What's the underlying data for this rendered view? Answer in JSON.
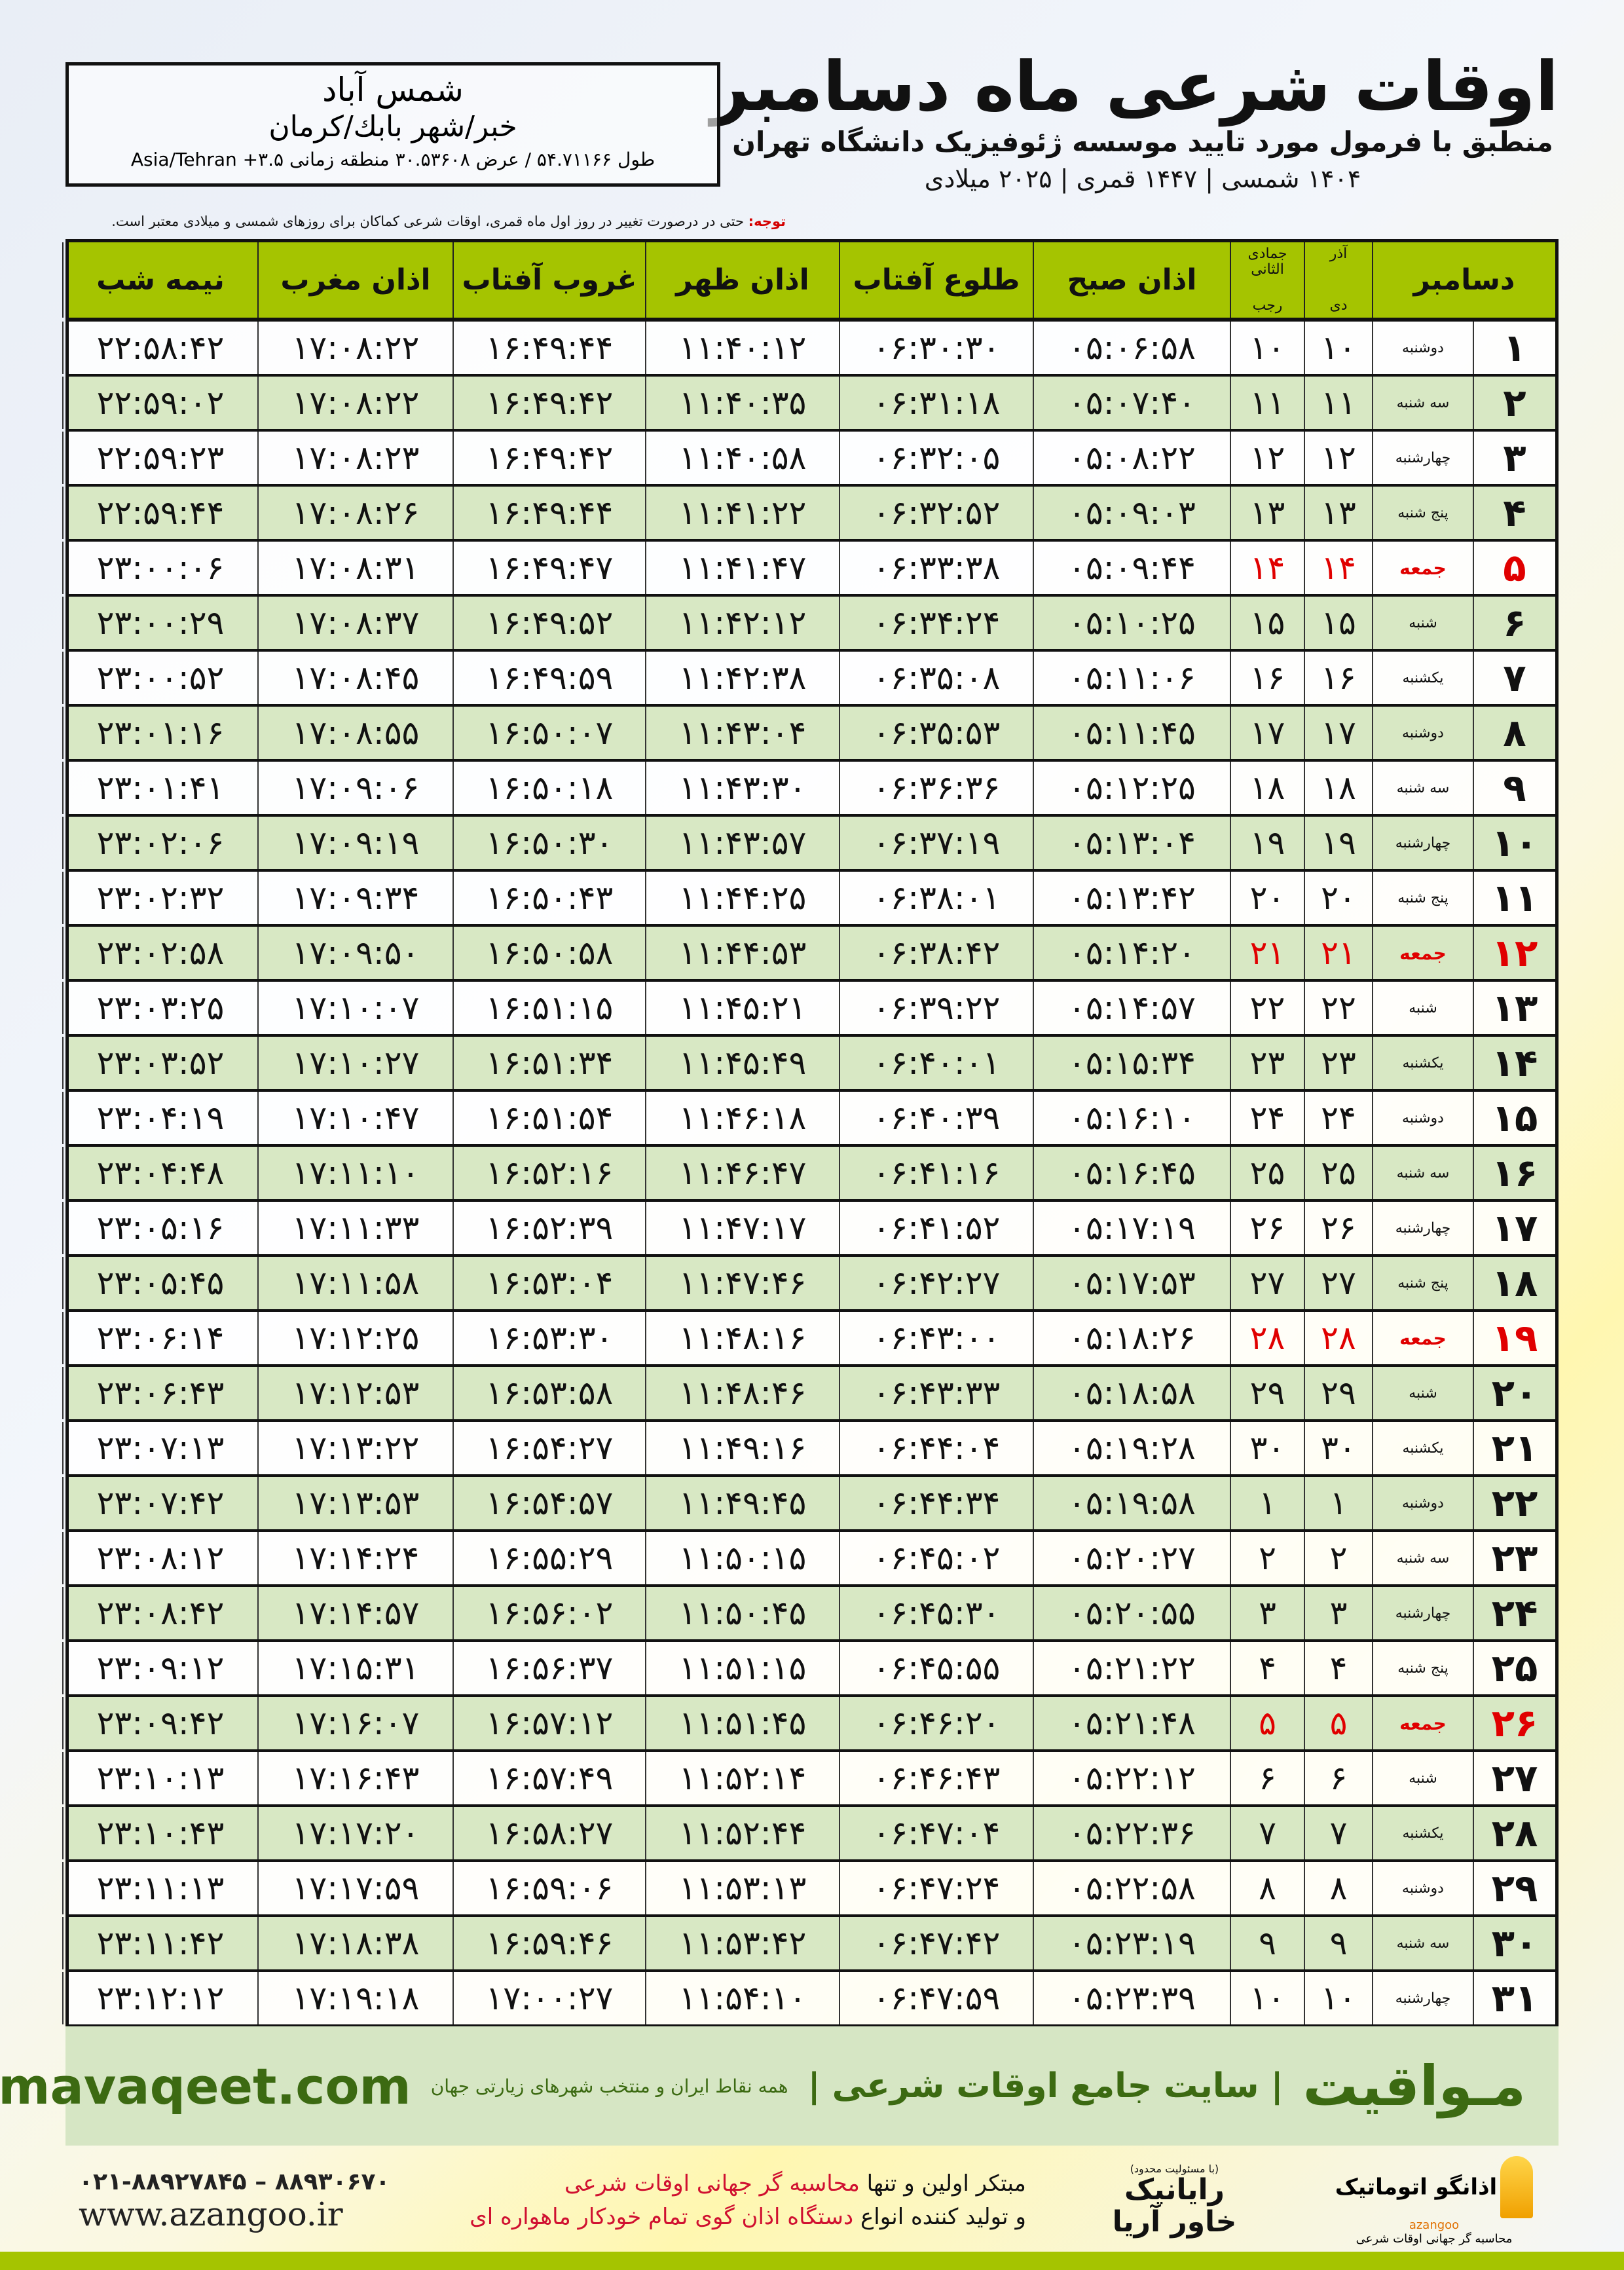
{
  "header": {
    "title": "اوقات شرعی ماه دسامبر",
    "subtitle": "منطبق با فرمول مورد تایید موسسه ژئوفیزیک دانشگاه تهران",
    "dates": "۱۴۰۴ شمسی | ۱۴۴۷ قمری | ۲۰۲۵ میلادی"
  },
  "location": {
    "city": "شمس آباد",
    "region": "خبر/شهر بابك/كرمان",
    "coords": "طول ۵۴.۷۱۱۶۶ / عرض ۳۰.۵۳۶۰۸ منطقه زمانی ۳.۵+ Asia/Tehran"
  },
  "note": {
    "label": "توجه:",
    "text": " حتی در درصورت تغییر در روز اول ماه قمری، اوقات شرعی کماکان برای روزهای شمسی و میلادی معتبر است."
  },
  "columns": {
    "month": "دسامبر",
    "shamsi_top": "آذر",
    "shamsi_bottom": "دی",
    "hijri_top": "جمادی الثانی",
    "hijri_bottom": "رجب",
    "fajr": "اذان صبح",
    "sunrise": "طلوع آفتاب",
    "dhuhr": "اذان ظهر",
    "sunset": "غروب آفتاب",
    "maghrib": "اذان مغرب",
    "midnight": "نیمه شب"
  },
  "colors": {
    "header_green": "#a5c400",
    "alt_row": "#d8e8c4",
    "friday": "#e00000",
    "brand_green": "#3c6a12"
  },
  "rows": [
    [
      "۱",
      "دوشنبه",
      "۱۰",
      "۱۰",
      "۰۵:۰۶:۵۸",
      "۰۶:۳۰:۳۰",
      "۱۱:۴۰:۱۲",
      "۱۶:۴۹:۴۴",
      "۱۷:۰۸:۲۲",
      "۲۲:۵۸:۴۲"
    ],
    [
      "۲",
      "سه شنبه",
      "۱۱",
      "۱۱",
      "۰۵:۰۷:۴۰",
      "۰۶:۳۱:۱۸",
      "۱۱:۴۰:۳۵",
      "۱۶:۴۹:۴۲",
      "۱۷:۰۸:۲۲",
      "۲۲:۵۹:۰۲"
    ],
    [
      "۳",
      "چهارشنبه",
      "۱۲",
      "۱۲",
      "۰۵:۰۸:۲۲",
      "۰۶:۳۲:۰۵",
      "۱۱:۴۰:۵۸",
      "۱۶:۴۹:۴۲",
      "۱۷:۰۸:۲۳",
      "۲۲:۵۹:۲۳"
    ],
    [
      "۴",
      "پنج شنبه",
      "۱۳",
      "۱۳",
      "۰۵:۰۹:۰۳",
      "۰۶:۳۲:۵۲",
      "۱۱:۴۱:۲۲",
      "۱۶:۴۹:۴۴",
      "۱۷:۰۸:۲۶",
      "۲۲:۵۹:۴۴"
    ],
    [
      "۵",
      "جمعه",
      "۱۴",
      "۱۴",
      "۰۵:۰۹:۴۴",
      "۰۶:۳۳:۳۸",
      "۱۱:۴۱:۴۷",
      "۱۶:۴۹:۴۷",
      "۱۷:۰۸:۳۱",
      "۲۳:۰۰:۰۶"
    ],
    [
      "۶",
      "شنبه",
      "۱۵",
      "۱۵",
      "۰۵:۱۰:۲۵",
      "۰۶:۳۴:۲۴",
      "۱۱:۴۲:۱۲",
      "۱۶:۴۹:۵۲",
      "۱۷:۰۸:۳۷",
      "۲۳:۰۰:۲۹"
    ],
    [
      "۷",
      "یکشنبه",
      "۱۶",
      "۱۶",
      "۰۵:۱۱:۰۶",
      "۰۶:۳۵:۰۸",
      "۱۱:۴۲:۳۸",
      "۱۶:۴۹:۵۹",
      "۱۷:۰۸:۴۵",
      "۲۳:۰۰:۵۲"
    ],
    [
      "۸",
      "دوشنبه",
      "۱۷",
      "۱۷",
      "۰۵:۱۱:۴۵",
      "۰۶:۳۵:۵۳",
      "۱۱:۴۳:۰۴",
      "۱۶:۵۰:۰۷",
      "۱۷:۰۸:۵۵",
      "۲۳:۰۱:۱۶"
    ],
    [
      "۹",
      "سه شنبه",
      "۱۸",
      "۱۸",
      "۰۵:۱۲:۲۵",
      "۰۶:۳۶:۳۶",
      "۱۱:۴۳:۳۰",
      "۱۶:۵۰:۱۸",
      "۱۷:۰۹:۰۶",
      "۲۳:۰۱:۴۱"
    ],
    [
      "۱۰",
      "چهارشنبه",
      "۱۹",
      "۱۹",
      "۰۵:۱۳:۰۴",
      "۰۶:۳۷:۱۹",
      "۱۱:۴۳:۵۷",
      "۱۶:۵۰:۳۰",
      "۱۷:۰۹:۱۹",
      "۲۳:۰۲:۰۶"
    ],
    [
      "۱۱",
      "پنج شنبه",
      "۲۰",
      "۲۰",
      "۰۵:۱۳:۴۲",
      "۰۶:۳۸:۰۱",
      "۱۱:۴۴:۲۵",
      "۱۶:۵۰:۴۳",
      "۱۷:۰۹:۳۴",
      "۲۳:۰۲:۳۲"
    ],
    [
      "۱۲",
      "جمعه",
      "۲۱",
      "۲۱",
      "۰۵:۱۴:۲۰",
      "۰۶:۳۸:۴۲",
      "۱۱:۴۴:۵۳",
      "۱۶:۵۰:۵۸",
      "۱۷:۰۹:۵۰",
      "۲۳:۰۲:۵۸"
    ],
    [
      "۱۳",
      "شنبه",
      "۲۲",
      "۲۲",
      "۰۵:۱۴:۵۷",
      "۰۶:۳۹:۲۲",
      "۱۱:۴۵:۲۱",
      "۱۶:۵۱:۱۵",
      "۱۷:۱۰:۰۷",
      "۲۳:۰۳:۲۵"
    ],
    [
      "۱۴",
      "یکشنبه",
      "۲۳",
      "۲۳",
      "۰۵:۱۵:۳۴",
      "۰۶:۴۰:۰۱",
      "۱۱:۴۵:۴۹",
      "۱۶:۵۱:۳۴",
      "۱۷:۱۰:۲۷",
      "۲۳:۰۳:۵۲"
    ],
    [
      "۱۵",
      "دوشنبه",
      "۲۴",
      "۲۴",
      "۰۵:۱۶:۱۰",
      "۰۶:۴۰:۳۹",
      "۱۱:۴۶:۱۸",
      "۱۶:۵۱:۵۴",
      "۱۷:۱۰:۴۷",
      "۲۳:۰۴:۱۹"
    ],
    [
      "۱۶",
      "سه شنبه",
      "۲۵",
      "۲۵",
      "۰۵:۱۶:۴۵",
      "۰۶:۴۱:۱۶",
      "۱۱:۴۶:۴۷",
      "۱۶:۵۲:۱۶",
      "۱۷:۱۱:۱۰",
      "۲۳:۰۴:۴۸"
    ],
    [
      "۱۷",
      "چهارشنبه",
      "۲۶",
      "۲۶",
      "۰۵:۱۷:۱۹",
      "۰۶:۴۱:۵۲",
      "۱۱:۴۷:۱۷",
      "۱۶:۵۲:۳۹",
      "۱۷:۱۱:۳۳",
      "۲۳:۰۵:۱۶"
    ],
    [
      "۱۸",
      "پنج شنبه",
      "۲۷",
      "۲۷",
      "۰۵:۱۷:۵۳",
      "۰۶:۴۲:۲۷",
      "۱۱:۴۷:۴۶",
      "۱۶:۵۳:۰۴",
      "۱۷:۱۱:۵۸",
      "۲۳:۰۵:۴۵"
    ],
    [
      "۱۹",
      "جمعه",
      "۲۸",
      "۲۸",
      "۰۵:۱۸:۲۶",
      "۰۶:۴۳:۰۰",
      "۱۱:۴۸:۱۶",
      "۱۶:۵۳:۳۰",
      "۱۷:۱۲:۲۵",
      "۲۳:۰۶:۱۴"
    ],
    [
      "۲۰",
      "شنبه",
      "۲۹",
      "۲۹",
      "۰۵:۱۸:۵۸",
      "۰۶:۴۳:۳۳",
      "۱۱:۴۸:۴۶",
      "۱۶:۵۳:۵۸",
      "۱۷:۱۲:۵۳",
      "۲۳:۰۶:۴۳"
    ],
    [
      "۲۱",
      "یکشنبه",
      "۳۰",
      "۳۰",
      "۰۵:۱۹:۲۸",
      "۰۶:۴۴:۰۴",
      "۱۱:۴۹:۱۶",
      "۱۶:۵۴:۲۷",
      "۱۷:۱۳:۲۲",
      "۲۳:۰۷:۱۳"
    ],
    [
      "۲۲",
      "دوشنبه",
      "۱",
      "۱",
      "۰۵:۱۹:۵۸",
      "۰۶:۴۴:۳۴",
      "۱۱:۴۹:۴۵",
      "۱۶:۵۴:۵۷",
      "۱۷:۱۳:۵۳",
      "۲۳:۰۷:۴۲"
    ],
    [
      "۲۳",
      "سه شنبه",
      "۲",
      "۲",
      "۰۵:۲۰:۲۷",
      "۰۶:۴۵:۰۲",
      "۱۱:۵۰:۱۵",
      "۱۶:۵۵:۲۹",
      "۱۷:۱۴:۲۴",
      "۲۳:۰۸:۱۲"
    ],
    [
      "۲۴",
      "چهارشنبه",
      "۳",
      "۳",
      "۰۵:۲۰:۵۵",
      "۰۶:۴۵:۳۰",
      "۱۱:۵۰:۴۵",
      "۱۶:۵۶:۰۲",
      "۱۷:۱۴:۵۷",
      "۲۳:۰۸:۴۲"
    ],
    [
      "۲۵",
      "پنج شنبه",
      "۴",
      "۴",
      "۰۵:۲۱:۲۲",
      "۰۶:۴۵:۵۵",
      "۱۱:۵۱:۱۵",
      "۱۶:۵۶:۳۷",
      "۱۷:۱۵:۳۱",
      "۲۳:۰۹:۱۲"
    ],
    [
      "۲۶",
      "جمعه",
      "۵",
      "۵",
      "۰۵:۲۱:۴۸",
      "۰۶:۴۶:۲۰",
      "۱۱:۵۱:۴۵",
      "۱۶:۵۷:۱۲",
      "۱۷:۱۶:۰۷",
      "۲۳:۰۹:۴۲"
    ],
    [
      "۲۷",
      "شنبه",
      "۶",
      "۶",
      "۰۵:۲۲:۱۲",
      "۰۶:۴۶:۴۳",
      "۱۱:۵۲:۱۴",
      "۱۶:۵۷:۴۹",
      "۱۷:۱۶:۴۳",
      "۲۳:۱۰:۱۳"
    ],
    [
      "۲۸",
      "یکشنبه",
      "۷",
      "۷",
      "۰۵:۲۲:۳۶",
      "۰۶:۴۷:۰۴",
      "۱۱:۵۲:۴۴",
      "۱۶:۵۸:۲۷",
      "۱۷:۱۷:۲۰",
      "۲۳:۱۰:۴۳"
    ],
    [
      "۲۹",
      "دوشنبه",
      "۸",
      "۸",
      "۰۵:۲۲:۵۸",
      "۰۶:۴۷:۲۴",
      "۱۱:۵۳:۱۳",
      "۱۶:۵۹:۰۶",
      "۱۷:۱۷:۵۹",
      "۲۳:۱۱:۱۳"
    ],
    [
      "۳۰",
      "سه شنبه",
      "۹",
      "۹",
      "۰۵:۲۳:۱۹",
      "۰۶:۴۷:۴۲",
      "۱۱:۵۳:۴۲",
      "۱۶:۵۹:۴۶",
      "۱۷:۱۸:۳۸",
      "۲۳:۱۱:۴۲"
    ],
    [
      "۳۱",
      "چهارشنبه",
      "۱۰",
      "۱۰",
      "۰۵:۲۳:۳۹",
      "۰۶:۴۷:۵۹",
      "۱۱:۵۴:۱۰",
      "۱۷:۰۰:۲۷",
      "۱۷:۱۹:۱۸",
      "۲۳:۱۲:۱۲"
    ]
  ],
  "footer": {
    "brand": "مـواقیت",
    "tagline": "| سایت جامع اوقات شرعی |",
    "tagline2": "همه نقاط ایران و منتخب شهرهای زیارتی جهان",
    "site": "mavaqeet.com",
    "logo1_name": "اذانگو اتوماتیک",
    "logo1_latin": "azangoo",
    "logo1_sub": "محاسبه گر جهانی اوقات شرعی",
    "logo2_small": "(با مسئولیت محدود)",
    "logo2_name": "رایانیک خاور آریا",
    "ad_line1_a": "مبتکر اولین و تنها ",
    "ad_line1_b": "محاسبه گر جهانی اوقات شرعی",
    "ad_line2_a": "و تولید کننده انواع ",
    "ad_line2_b": "دستگاه اذان گوی تمام خودکار ماهواره ای",
    "phone": "۰۲۱-۸۸۹۲۷۸۴۵ – ۸۸۹۳۰۶۷۰",
    "web": "www.azangoo.ir"
  }
}
